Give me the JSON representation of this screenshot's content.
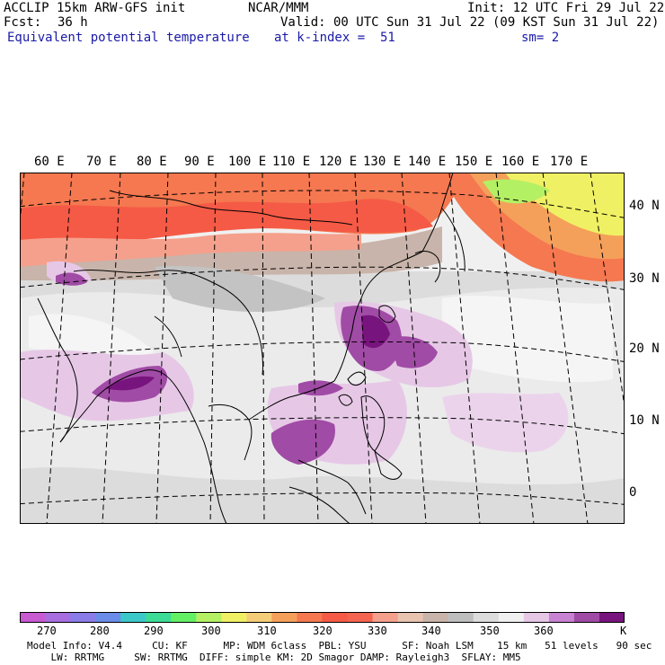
{
  "header": {
    "model": "ACCLIP 15km ARW-GFS init",
    "center": "NCAR/MMM",
    "init": "Init: 12 UTC Fri 29 Jul 22",
    "fcst_label": "Fcst:",
    "fcst_value": "36 h",
    "valid": "Valid: 00 UTC Sun 31 Jul 22 (09 KST Sun 31 Jul 22)",
    "field": "Equivalent potential temperature",
    "level": "at k-index =  51",
    "smooth": "sm= 2"
  },
  "map": {
    "lon_labels": [
      "60 E",
      "70 E",
      "80 E",
      "90 E",
      "100 E",
      "110 E",
      "120 E",
      "130 E",
      "140 E",
      "150 E",
      "160 E",
      "170 E"
    ],
    "lat_labels": [
      "40 N",
      "30 N",
      "20 N",
      "10 N",
      "0"
    ],
    "colors": {
      "frame": "#000000",
      "gridline": "#000000",
      "coast": "#000000"
    }
  },
  "colorbar": {
    "unit": "K",
    "ticks": [
      "270",
      "280",
      "290",
      "300",
      "310",
      "320",
      "330",
      "340",
      "350",
      "360"
    ],
    "colors": [
      "#c85ad2",
      "#a86ee0",
      "#8a7ce8",
      "#6b8ce8",
      "#3cc8c8",
      "#3cdc96",
      "#64f064",
      "#b4f064",
      "#f0f064",
      "#f5cd78",
      "#f5a05a",
      "#f57850",
      "#f55a46",
      "#f56450",
      "#f5a08c",
      "#e8c3b0",
      "#c8b4aa",
      "#bebebe",
      "#dcdcdc",
      "#f0f0f0",
      "#e6c8e6",
      "#c882d2",
      "#a04ba5",
      "#78147d"
    ]
  },
  "footer": {
    "line1": "Model Info: V4.4     CU: KF      MP: WDM 6class  PBL: YSU      SF: Noah LSM    15 km   51 levels   90 sec",
    "line2": "    LW: RRTMG     SW: RRTMG  DIFF: simple KM: 2D Smagor DAMP: Rayleigh3  SFLAY: MM5"
  }
}
